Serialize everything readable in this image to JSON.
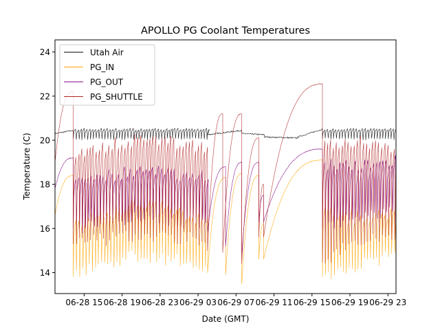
{
  "chart_data": {
    "type": "line",
    "title": "APOLLO PG Coolant Temperatures",
    "xlabel": "Date (GMT)",
    "ylabel": "Temperature (C)",
    "x_units": "hours since 06-28 00:00 GMT",
    "xlim": [
      11.93,
      47.85
    ],
    "ylim": [
      13.05,
      24.55
    ],
    "x_ticks": [
      {
        "value": 15,
        "label": "06-28 15"
      },
      {
        "value": 19,
        "label": "06-28 19"
      },
      {
        "value": 23,
        "label": "06-28 23"
      },
      {
        "value": 27,
        "label": "06-29 03"
      },
      {
        "value": 31,
        "label": "06-29 07"
      },
      {
        "value": 35,
        "label": "06-29 11"
      },
      {
        "value": 39,
        "label": "06-29 15"
      },
      {
        "value": 43,
        "label": "06-29 19"
      },
      {
        "value": 47,
        "label": "06-29 23"
      }
    ],
    "y_ticks": [
      {
        "value": 14,
        "label": "14"
      },
      {
        "value": 16,
        "label": "16"
      },
      {
        "value": 18,
        "label": "18"
      },
      {
        "value": 20,
        "label": "20"
      },
      {
        "value": 22,
        "label": "22"
      },
      {
        "value": 24,
        "label": "24"
      }
    ],
    "grid": false,
    "legend_position": "top-left",
    "series": [
      {
        "name": "Utah Air",
        "color": "#000000",
        "segments": [
          {
            "kind": "ramp",
            "x": [
              11.93,
              13.85
            ],
            "y": [
              20.3,
              20.45
            ]
          },
          {
            "kind": "osc",
            "x": [
              13.85,
              28.0
            ],
            "hi": 20.5,
            "lo": 20.05,
            "period": 0.3
          },
          {
            "kind": "ramp",
            "x": [
              28.0,
              31.6
            ],
            "y": [
              20.25,
              20.45
            ]
          },
          {
            "kind": "ramp",
            "x": [
              31.6,
              34.0
            ],
            "y": [
              20.3,
              20.25
            ]
          },
          {
            "kind": "ramp",
            "x": [
              34.0,
              37.5
            ],
            "y": [
              20.15,
              20.1
            ]
          },
          {
            "kind": "ramp",
            "x": [
              37.5,
              40.1
            ],
            "y": [
              20.15,
              20.5
            ]
          },
          {
            "kind": "osc",
            "x": [
              40.1,
              47.85
            ],
            "hi": 20.5,
            "lo": 20.05,
            "period": 0.3
          }
        ]
      },
      {
        "name": "PG_IN",
        "color": "#ffa500",
        "segments": [
          {
            "kind": "rise",
            "x": [
              11.93,
              13.85
            ],
            "y": [
              16.6,
              18.4
            ]
          },
          {
            "kind": "osc",
            "x": [
              13.85,
              28.0
            ],
            "hi": [
              16.2,
              17.2,
              16.3
            ],
            "lo": [
              14.0,
              14.8,
              14.3
            ],
            "period": 0.32
          },
          {
            "kind": "rise",
            "x": [
              28.0,
              29.9
            ],
            "y": [
              14.0,
              18.3
            ]
          },
          {
            "kind": "rise",
            "x": [
              29.9,
              31.6
            ],
            "y": [
              13.9,
              18.5
            ]
          },
          {
            "kind": "rise",
            "x": [
              31.6,
              33.4
            ],
            "y": [
              13.5,
              18.4
            ]
          },
          {
            "kind": "rise",
            "x": [
              33.4,
              33.9
            ],
            "y": [
              14.6,
              16.2
            ]
          },
          {
            "kind": "rise",
            "x": [
              33.9,
              40.1
            ],
            "y": [
              14.6,
              19.1
            ]
          },
          {
            "kind": "osc",
            "x": [
              40.1,
              47.85
            ],
            "hi": [
              16.8,
              16.5,
              16.8
            ],
            "lo": [
              13.8,
              14.3,
              14.8
            ],
            "period": 0.32
          }
        ]
      },
      {
        "name": "PG_OUT",
        "color": "#800080",
        "segments": [
          {
            "kind": "rise",
            "x": [
              11.93,
              13.85
            ],
            "y": [
              17.8,
              19.2
            ]
          },
          {
            "kind": "osc",
            "x": [
              13.85,
              28.0
            ],
            "hi": [
              18.3,
              18.6,
              18.4
            ],
            "lo": [
              16.0,
              16.5,
              16.2
            ],
            "period": 0.32
          },
          {
            "kind": "rise",
            "x": [
              28.0,
              29.9
            ],
            "y": [
              15.8,
              18.8
            ]
          },
          {
            "kind": "rise",
            "x": [
              29.9,
              31.6
            ],
            "y": [
              15.2,
              19.0
            ]
          },
          {
            "kind": "rise",
            "x": [
              31.6,
              33.4
            ],
            "y": [
              14.8,
              19.0
            ]
          },
          {
            "kind": "rise",
            "x": [
              33.4,
              33.9
            ],
            "y": [
              16.3,
              17.5
            ]
          },
          {
            "kind": "rise",
            "x": [
              33.9,
              40.1
            ],
            "y": [
              16.3,
              19.6
            ]
          },
          {
            "kind": "osc",
            "x": [
              40.1,
              47.85
            ],
            "hi": [
              19.0,
              18.8,
              19.1
            ],
            "lo": [
              16.0,
              16.5,
              16.8
            ],
            "period": 0.32
          }
        ]
      },
      {
        "name": "PG_SHUTTLE",
        "color": "#b22222",
        "segments": [
          {
            "kind": "rise",
            "x": [
              11.93,
              13.85
            ],
            "y": [
              19.0,
              22.2
            ]
          },
          {
            "kind": "osc",
            "x": [
              13.85,
              28.0
            ],
            "hi": [
              19.5,
              20.1,
              19.7
            ],
            "lo": [
              15.3,
              15.7,
              15.5
            ],
            "period": 0.32
          },
          {
            "kind": "rise",
            "x": [
              28.0,
              29.6
            ],
            "y": [
              15.0,
              21.2
            ]
          },
          {
            "kind": "rise",
            "x": [
              29.6,
              31.6
            ],
            "y": [
              14.9,
              21.2
            ]
          },
          {
            "kind": "rise",
            "x": [
              31.6,
              33.4
            ],
            "y": [
              14.4,
              20.1
            ]
          },
          {
            "kind": "rise",
            "x": [
              33.4,
              33.9
            ],
            "y": [
              15.6,
              18.0
            ]
          },
          {
            "kind": "rise",
            "x": [
              33.9,
              40.1
            ],
            "y": [
              15.6,
              22.55
            ]
          },
          {
            "kind": "osc",
            "x": [
              40.1,
              47.85
            ],
            "hi": [
              19.8,
              20.0,
              19.7
            ],
            "lo": [
              14.5,
              15.5,
              15.7
            ],
            "period": 0.32
          }
        ]
      }
    ]
  }
}
